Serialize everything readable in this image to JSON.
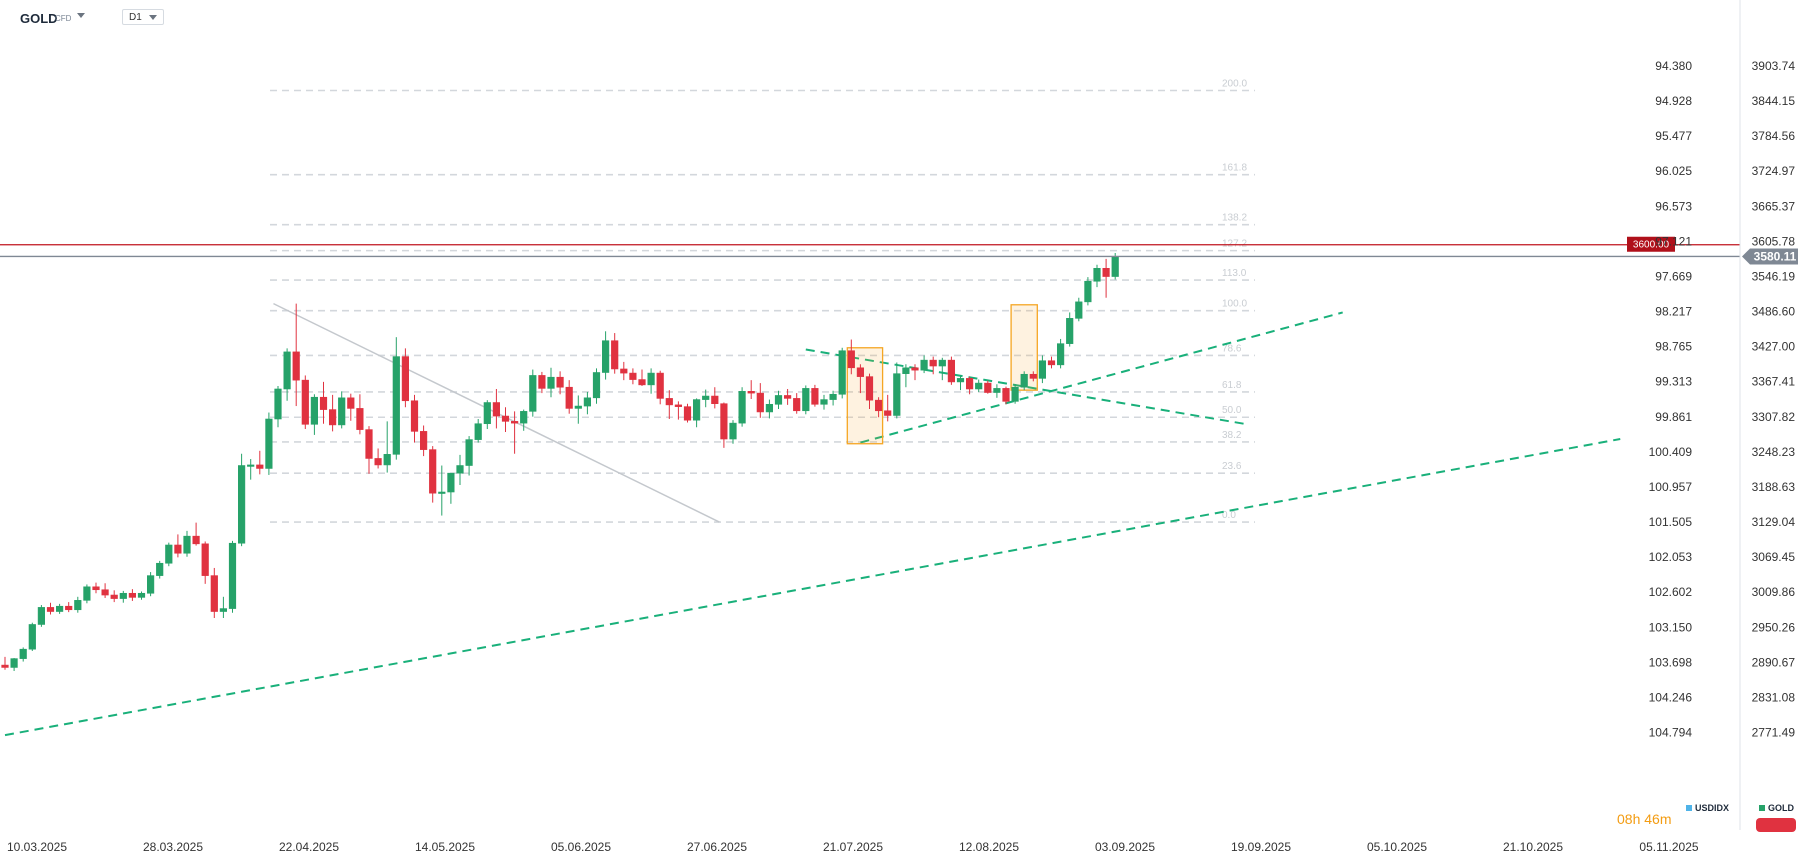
{
  "header": {
    "symbol": "GOLD",
    "symbol_type": "CFD",
    "timeframe": "D1"
  },
  "countdown": {
    "hours": "08",
    "h_unit": "h",
    "minutes": "46",
    "m_unit": "m"
  },
  "legend": {
    "secondary": "USDIDX",
    "primary": "GOLD"
  },
  "colors": {
    "up": "#26a269",
    "down": "#e03240",
    "trend": "#19b07a",
    "fib": "#d3d7dc",
    "resistance": "#c0151f",
    "current": "#7f8894",
    "box": "#f5a623"
  },
  "chart_data": {
    "type": "candlestick",
    "symbol": "GOLD",
    "secondary_symbol": "USDIDX",
    "x_tick_labels": [
      "10.03.2025",
      "28.03.2025",
      "22.04.2025",
      "14.05.2025",
      "05.06.2025",
      "27.06.2025",
      "21.07.2025",
      "12.08.2025",
      "03.09.2025",
      "19.09.2025",
      "05.10.2025",
      "21.10.2025",
      "05.11.2025"
    ],
    "y_axis_gold": {
      "range": [
        2718,
        3924
      ],
      "ticks": [
        "3903.74",
        "3844.15",
        "3784.56",
        "3724.97",
        "3665.37",
        "3605.78",
        "3546.19",
        "3486.60",
        "3427.00",
        "3367.41",
        "3307.82",
        "3248.23",
        "3188.63",
        "3129.04",
        "3069.45",
        "3009.86",
        "2950.26",
        "2890.67",
        "2831.08",
        "2771.49"
      ]
    },
    "y_axis_usdidx": {
      "ticks": [
        "94.380",
        "94.928",
        "95.477",
        "96.025",
        "96.573",
        "97.121",
        "97.669",
        "98.217",
        "98.765",
        "99.313",
        "99.861",
        "100.409",
        "100.957",
        "101.505",
        "102.053",
        "102.602",
        "103.150",
        "103.698",
        "104.246",
        "104.794"
      ]
    },
    "price_labels": {
      "resistance": "3600.00",
      "current": "3580.11"
    },
    "levels": {
      "resistance": 3600.0,
      "current": 3580.11
    },
    "fibonacci": [
      {
        "label": "0.0",
        "price": 3129
      },
      {
        "label": "23.6",
        "price": 3212
      },
      {
        "label": "38.2",
        "price": 3265
      },
      {
        "label": "50.0",
        "price": 3307
      },
      {
        "label": "61.8",
        "price": 3350
      },
      {
        "label": "78.6",
        "price": 3412
      },
      {
        "label": "100.0",
        "price": 3488
      },
      {
        "label": "113.0",
        "price": 3540
      },
      {
        "label": "127.2",
        "price": 3590
      },
      {
        "label": "138.2",
        "price": 3634
      },
      {
        "label": "161.8",
        "price": 3719
      },
      {
        "label": "200.0",
        "price": 3862
      }
    ],
    "candles": [
      [
        2886,
        2900,
        2878,
        2882
      ],
      [
        2882,
        2898,
        2876,
        2897
      ],
      [
        2897,
        2916,
        2892,
        2913
      ],
      [
        2913,
        2958,
        2910,
        2955
      ],
      [
        2955,
        2988,
        2951,
        2984
      ],
      [
        2984,
        2992,
        2972,
        2977
      ],
      [
        2977,
        2990,
        2973,
        2986
      ],
      [
        2986,
        2993,
        2976,
        2980
      ],
      [
        2980,
        3002,
        2975,
        2996
      ],
      [
        2996,
        3023,
        2991,
        3019
      ],
      [
        3019,
        3026,
        3008,
        3014
      ],
      [
        3014,
        3025,
        3000,
        3005
      ],
      [
        3005,
        3013,
        2993,
        2999
      ],
      [
        2999,
        3012,
        2992,
        3008
      ],
      [
        3008,
        3015,
        2995,
        3001
      ],
      [
        3001,
        3011,
        2997,
        3008
      ],
      [
        3008,
        3044,
        3003,
        3038
      ],
      [
        3038,
        3063,
        3033,
        3059
      ],
      [
        3059,
        3094,
        3054,
        3090
      ],
      [
        3090,
        3108,
        3069,
        3076
      ],
      [
        3076,
        3114,
        3070,
        3105
      ],
      [
        3105,
        3128,
        3089,
        3092
      ],
      [
        3092,
        3096,
        3024,
        3038
      ],
      [
        3038,
        3051,
        2966,
        2977
      ],
      [
        2977,
        3002,
        2966,
        2982
      ],
      [
        2982,
        3097,
        2975,
        3093
      ],
      [
        3093,
        3245,
        3088,
        3225
      ],
      [
        3225,
        3236,
        3201,
        3226
      ],
      [
        3226,
        3250,
        3210,
        3220
      ],
      [
        3220,
        3315,
        3209,
        3304
      ],
      [
        3304,
        3360,
        3290,
        3355
      ],
      [
        3355,
        3424,
        3335,
        3418
      ],
      [
        3418,
        3500,
        3326,
        3370
      ],
      [
        3370,
        3378,
        3287,
        3295
      ],
      [
        3295,
        3346,
        3277,
        3341
      ],
      [
        3341,
        3367,
        3296,
        3320
      ],
      [
        3320,
        3345,
        3283,
        3294
      ],
      [
        3294,
        3351,
        3288,
        3340
      ],
      [
        3340,
        3347,
        3301,
        3322
      ],
      [
        3322,
        3346,
        3278,
        3286
      ],
      [
        3286,
        3292,
        3211,
        3237
      ],
      [
        3237,
        3254,
        3220,
        3226
      ],
      [
        3226,
        3300,
        3213,
        3244
      ],
      [
        3244,
        3443,
        3235,
        3410
      ],
      [
        3410,
        3424,
        3324,
        3335
      ],
      [
        3335,
        3345,
        3264,
        3283
      ],
      [
        3283,
        3293,
        3241,
        3252
      ],
      [
        3252,
        3258,
        3162,
        3178
      ],
      [
        3178,
        3225,
        3140,
        3180
      ],
      [
        3180,
        3212,
        3160,
        3212
      ],
      [
        3212,
        3243,
        3192,
        3225
      ],
      [
        3225,
        3275,
        3208,
        3269
      ],
      [
        3269,
        3304,
        3264,
        3296
      ],
      [
        3296,
        3336,
        3287,
        3332
      ],
      [
        3332,
        3355,
        3288,
        3309
      ],
      [
        3309,
        3324,
        3282,
        3300
      ],
      [
        3300,
        3317,
        3245,
        3297
      ],
      [
        3297,
        3320,
        3284,
        3317
      ],
      [
        3317,
        3388,
        3308,
        3378
      ],
      [
        3378,
        3384,
        3348,
        3356
      ],
      [
        3356,
        3391,
        3341,
        3375
      ],
      [
        3375,
        3385,
        3346,
        3358
      ],
      [
        3358,
        3370,
        3313,
        3322
      ],
      [
        3322,
        3344,
        3296,
        3326
      ],
      [
        3326,
        3350,
        3312,
        3340
      ],
      [
        3340,
        3390,
        3330,
        3383
      ],
      [
        3383,
        3453,
        3371,
        3437
      ],
      [
        3437,
        3450,
        3381,
        3389
      ],
      [
        3389,
        3401,
        3370,
        3382
      ],
      [
        3382,
        3390,
        3363,
        3371
      ],
      [
        3371,
        3388,
        3360,
        3362
      ],
      [
        3362,
        3390,
        3347,
        3382
      ],
      [
        3382,
        3386,
        3329,
        3339
      ],
      [
        3339,
        3353,
        3304,
        3328
      ],
      [
        3328,
        3334,
        3303,
        3325
      ],
      [
        3325,
        3330,
        3298,
        3302
      ],
      [
        3302,
        3339,
        3290,
        3337
      ],
      [
        3337,
        3354,
        3324,
        3343
      ],
      [
        3343,
        3358,
        3322,
        3330
      ],
      [
        3330,
        3332,
        3255,
        3270
      ],
      [
        3270,
        3302,
        3262,
        3297
      ],
      [
        3297,
        3358,
        3291,
        3351
      ],
      [
        3351,
        3370,
        3338,
        3348
      ],
      [
        3348,
        3365,
        3306,
        3316
      ],
      [
        3316,
        3337,
        3305,
        3329
      ],
      [
        3329,
        3352,
        3321,
        3344
      ],
      [
        3344,
        3355,
        3328,
        3339
      ],
      [
        3339,
        3348,
        3313,
        3318
      ],
      [
        3318,
        3361,
        3312,
        3356
      ],
      [
        3356,
        3362,
        3325,
        3329
      ],
      [
        3329,
        3345,
        3320,
        3337
      ],
      [
        3337,
        3352,
        3327,
        3346
      ],
      [
        3346,
        3425,
        3339,
        3420
      ],
      [
        3420,
        3439,
        3380,
        3391
      ],
      [
        3391,
        3397,
        3348,
        3376
      ],
      [
        3376,
        3381,
        3321,
        3336
      ],
      [
        3336,
        3341,
        3307,
        3318
      ],
      [
        3318,
        3345,
        3300,
        3310
      ],
      [
        3310,
        3400,
        3305,
        3381
      ],
      [
        3381,
        3397,
        3358,
        3391
      ],
      [
        3391,
        3397,
        3370,
        3387
      ],
      [
        3387,
        3412,
        3382,
        3404
      ],
      [
        3404,
        3410,
        3380,
        3394
      ],
      [
        3394,
        3408,
        3370,
        3404
      ],
      [
        3404,
        3410,
        3362,
        3367
      ],
      [
        3367,
        3378,
        3353,
        3373
      ],
      [
        3373,
        3376,
        3346,
        3355
      ],
      [
        3355,
        3371,
        3350,
        3365
      ],
      [
        3365,
        3369,
        3347,
        3349
      ],
      [
        3349,
        3363,
        3340,
        3356
      ],
      [
        3356,
        3359,
        3329,
        3334
      ],
      [
        3334,
        3363,
        3330,
        3358
      ],
      [
        3358,
        3385,
        3353,
        3380
      ],
      [
        3380,
        3385,
        3368,
        3373
      ],
      [
        3373,
        3412,
        3365,
        3403
      ],
      [
        3403,
        3410,
        3390,
        3396
      ],
      [
        3396,
        3440,
        3390,
        3432
      ],
      [
        3432,
        3485,
        3427,
        3475
      ],
      [
        3475,
        3510,
        3470,
        3503
      ],
      [
        3503,
        3545,
        3497,
        3538
      ],
      [
        3538,
        3566,
        3528,
        3560
      ],
      [
        3560,
        3576,
        3510,
        3546
      ],
      [
        3546,
        3586,
        3541,
        3580
      ]
    ],
    "trendlines": [
      {
        "name": "descending",
        "from": [
          29.5,
          3500
        ],
        "to": [
          78.5,
          3129
        ],
        "style": "solid"
      },
      {
        "name": "wedge-upper",
        "from": [
          88,
          3422
        ],
        "to": [
          136.5,
          3295
        ],
        "style": "dashed"
      },
      {
        "name": "wedge-lower",
        "from": [
          94,
          3264
        ],
        "to": [
          147,
          3485
        ],
        "style": "dashed"
      },
      {
        "name": "long-term-support",
        "from": [
          0,
          2767
        ],
        "to": [
          177.5,
          3270
        ],
        "style": "dashed"
      }
    ],
    "highlight_boxes": [
      {
        "from_index": 93,
        "to_index": 96,
        "top": 3425,
        "bottom": 3262
      },
      {
        "from_index": 111,
        "to_index": 113,
        "top": 3498,
        "bottom": 3353
      }
    ],
    "grid": false
  }
}
